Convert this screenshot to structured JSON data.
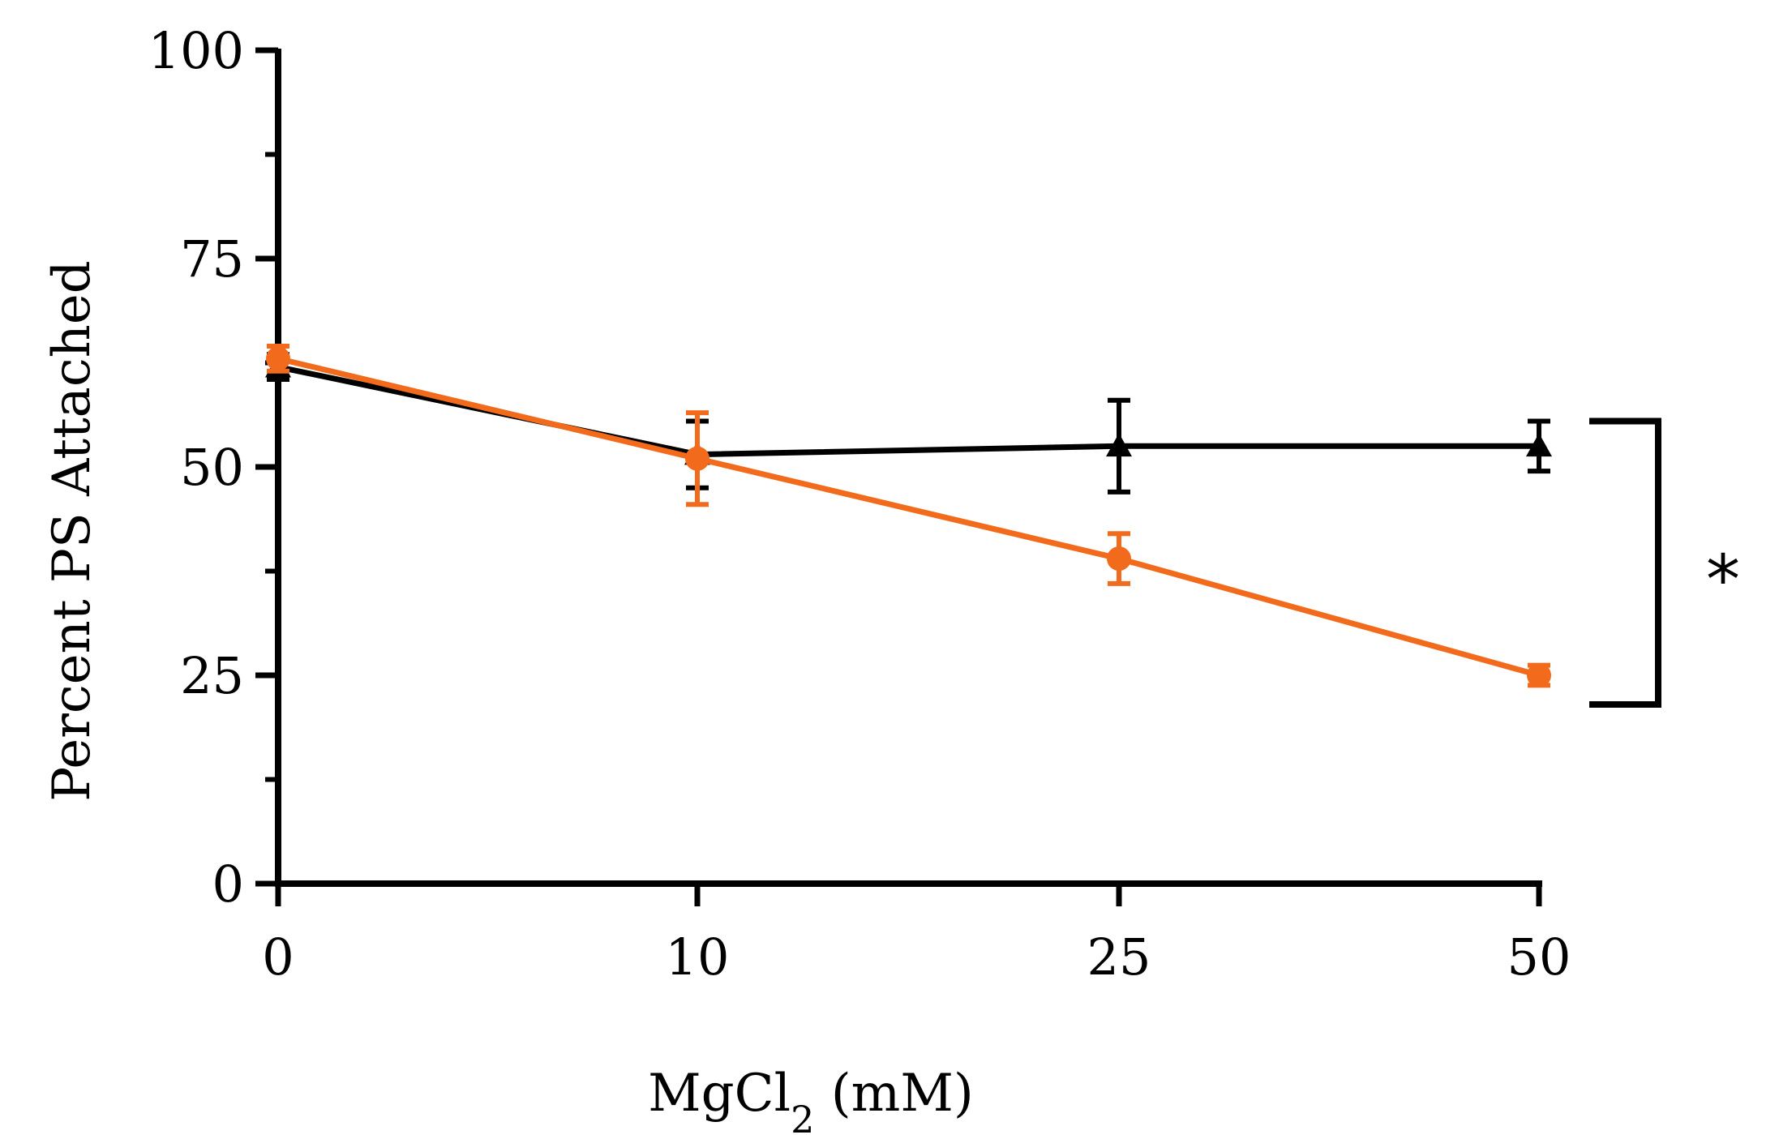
{
  "chart_data": {
    "type": "line",
    "title": "",
    "xlabel": "MgCl",
    "xlabel_subscript": "2",
    "xlabel_suffix": " (mM)",
    "ylabel": "Percent PS Attached",
    "categories": [
      "0",
      "10",
      "25",
      "50"
    ],
    "x_ticks": [
      "0",
      "10",
      "25",
      "50"
    ],
    "y_ticks": [
      "0",
      "25",
      "50",
      "75",
      "100"
    ],
    "ylim": [
      0,
      100
    ],
    "grid": false,
    "legend": "none",
    "series": [
      {
        "color": "#000000",
        "marker": "triangle",
        "values": [
          62,
          51.5,
          52.5,
          52.5
        ],
        "errors": [
          1.5,
          4,
          5.5,
          3
        ]
      },
      {
        "color": "#f26b1d",
        "marker": "circle",
        "values": [
          63,
          51,
          39,
          25
        ],
        "errors": [
          1.5,
          5.5,
          3,
          1.2
        ]
      }
    ],
    "annotations": [
      {
        "type": "bracket",
        "x": "50",
        "y_range": [
          21.5,
          55.5
        ],
        "label": "*"
      }
    ]
  }
}
